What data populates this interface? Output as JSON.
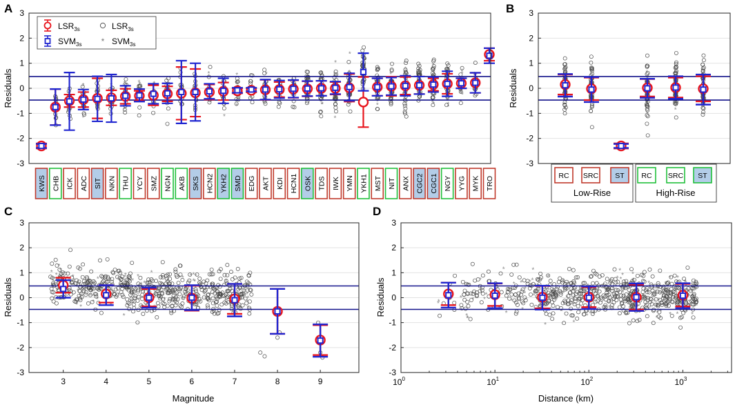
{
  "colors": {
    "lsr": "#e8141c",
    "svm": "#1f25d0",
    "band": "#11118a",
    "scatter": "#4a4a4a",
    "tag_red": "#c0392b",
    "tag_green": "#1fbf3a",
    "tag_fill_blue": "#b3cde8"
  },
  "panels": {
    "A": {
      "label": "A"
    },
    "B": {
      "label": "B"
    },
    "C": {
      "label": "C"
    },
    "D": {
      "label": "D"
    }
  },
  "legend": {
    "items": [
      {
        "symbol": "circle-errorbar",
        "name": "LSR",
        "sub": "3s"
      },
      {
        "symbol": "open-circle",
        "name": "LSR",
        "sub": "3s"
      },
      {
        "symbol": "square-errorbar",
        "name": "SVM",
        "sub": "3s"
      },
      {
        "symbol": "asterisk",
        "name": "SVM",
        "sub": "3s"
      }
    ]
  },
  "group_labels": {
    "low": "Low-Rise",
    "high": "High-Rise"
  },
  "chart_data": [
    {
      "panel": "A",
      "type": "scatter",
      "ylabel": "Residuals",
      "ylim": [
        -3,
        3
      ],
      "yticks": [
        -3,
        -2,
        -1,
        0,
        1,
        2,
        3
      ],
      "threshold_lines": [
        0.47,
        -0.47
      ],
      "categories": [
        "KWS",
        "CHB",
        "ICK",
        "ADC",
        "SIT",
        "NKN",
        "THU",
        "YCY",
        "SMZ",
        "NGN",
        "AKB",
        "SKS",
        "HCN2",
        "YKH2",
        "SMD",
        "EDG",
        "AKT",
        "KDI",
        "HCN1",
        "OSK",
        "TDS",
        "IWK",
        "YMN",
        "YKH1",
        "MST",
        "NIT",
        "ANX",
        "CGC2",
        "CGC1",
        "NGY",
        "YYG",
        "MYK",
        "TRO"
      ],
      "tag_colors": [
        "red",
        "green",
        "red",
        "red",
        "red",
        "red",
        "green",
        "red",
        "red",
        "green",
        "green",
        "red",
        "red",
        "green",
        "green",
        "red",
        "red",
        "red",
        "red",
        "green",
        "red",
        "red",
        "red",
        "green",
        "red",
        "green",
        "red",
        "red",
        "red",
        "green",
        "red",
        "red",
        "red"
      ],
      "tag_fill": [
        true,
        false,
        false,
        false,
        true,
        false,
        false,
        false,
        false,
        false,
        false,
        true,
        false,
        true,
        true,
        false,
        false,
        false,
        false,
        true,
        false,
        false,
        false,
        false,
        false,
        false,
        false,
        true,
        true,
        false,
        false,
        false,
        false
      ],
      "series": [
        {
          "name": "LSR3s",
          "mean": [
            -2.3,
            -0.75,
            -0.5,
            -0.45,
            -0.4,
            -0.38,
            -0.32,
            -0.3,
            -0.28,
            -0.22,
            -0.2,
            -0.18,
            -0.15,
            -0.12,
            -0.1,
            -0.08,
            -0.06,
            -0.05,
            -0.03,
            -0.02,
            0.0,
            0.0,
            0.02,
            -0.55,
            0.05,
            0.08,
            0.1,
            0.12,
            0.15,
            0.18,
            0.2,
            0.22,
            1.35
          ],
          "std": [
            0.1,
            0.72,
            0.25,
            0.3,
            0.8,
            0.3,
            0.3,
            0.2,
            0.4,
            0.3,
            1.05,
            0.95,
            0.3,
            0.35,
            0.1,
            0.08,
            0.4,
            0.3,
            0.35,
            0.3,
            0.3,
            0.25,
            0.55,
            1.0,
            0.35,
            0.38,
            0.35,
            0.35,
            0.25,
            0.4,
            0.2,
            0.4,
            0.25
          ]
        },
        {
          "name": "SVM3s",
          "mean": [
            -2.3,
            -0.75,
            -0.52,
            -0.45,
            -0.42,
            -0.4,
            -0.3,
            -0.28,
            -0.22,
            -0.2,
            -0.15,
            -0.15,
            -0.12,
            -0.1,
            -0.08,
            -0.05,
            -0.05,
            -0.04,
            -0.02,
            -0.01,
            0.0,
            0.02,
            0.05,
            0.65,
            0.05,
            0.08,
            0.1,
            0.12,
            0.15,
            0.18,
            0.2,
            0.22,
            1.3
          ],
          "std": [
            0.08,
            0.72,
            1.15,
            0.4,
            0.9,
            0.95,
            0.4,
            0.25,
            0.4,
            0.4,
            1.25,
            1.15,
            0.3,
            0.5,
            0.1,
            0.07,
            0.4,
            0.35,
            0.35,
            0.3,
            0.3,
            0.25,
            0.55,
            0.75,
            0.35,
            0.35,
            0.4,
            0.35,
            0.3,
            0.5,
            0.2,
            0.4,
            0.3
          ]
        }
      ]
    },
    {
      "panel": "B",
      "type": "scatter",
      "ylabel": "Residuals",
      "ylim": [
        -3,
        3
      ],
      "yticks": [
        -3,
        -2,
        -1,
        0,
        1,
        2,
        3
      ],
      "threshold_lines": [
        0.47,
        -0.47
      ],
      "categories": [
        "RC",
        "SRC",
        "ST",
        "RC",
        "SRC",
        "ST"
      ],
      "tag_colors": [
        "red",
        "red",
        "red",
        "green",
        "green",
        "green"
      ],
      "tag_fill": [
        false,
        false,
        true,
        false,
        false,
        true
      ],
      "series": [
        {
          "name": "LSR3s",
          "mean": [
            0.15,
            -0.02,
            -2.3,
            0.02,
            0.03,
            -0.02
          ],
          "std": [
            0.4,
            0.45,
            0.1,
            0.35,
            0.4,
            0.5
          ]
        },
        {
          "name": "SVM3s",
          "mean": [
            0.12,
            -0.05,
            -2.3,
            0.0,
            0.03,
            -0.05
          ],
          "std": [
            0.45,
            0.5,
            0.08,
            0.38,
            0.45,
            0.6
          ]
        }
      ]
    },
    {
      "panel": "C",
      "type": "scatter",
      "xlabel": "Magnitude",
      "ylabel": "Residuals",
      "xlim": [
        2.2,
        9.9
      ],
      "ylim": [
        -3,
        3
      ],
      "xticks": [
        3,
        4,
        5,
        6,
        7,
        8,
        9
      ],
      "yticks": [
        -3,
        -2,
        -1,
        0,
        1,
        2,
        3
      ],
      "threshold_lines": [
        0.47,
        -0.47
      ],
      "x": [
        3,
        4,
        5,
        6,
        7,
        8,
        9
      ],
      "series": [
        {
          "name": "LSR3s",
          "mean": [
            0.5,
            0.15,
            0.0,
            -0.02,
            -0.05,
            -0.55,
            -1.7
          ],
          "std": [
            0.3,
            0.35,
            0.35,
            0.5,
            0.6,
            0.9,
            0.6
          ]
        },
        {
          "name": "SVM3s",
          "mean": [
            0.35,
            0.1,
            0.0,
            0.0,
            -0.1,
            -0.55,
            -1.72
          ],
          "std": [
            0.35,
            0.4,
            0.4,
            0.5,
            0.65,
            0.9,
            0.65
          ]
        }
      ]
    },
    {
      "panel": "D",
      "type": "scatter",
      "xlabel": "Distance (km)",
      "ylabel": "Residuals",
      "xscale": "log",
      "xlim": [
        1,
        3300
      ],
      "ylim": [
        -3,
        3
      ],
      "xticks": [
        1,
        10,
        100,
        1000
      ],
      "xtick_labels": [
        {
          "base": "10",
          "exp": "0"
        },
        {
          "base": "10",
          "exp": "1"
        },
        {
          "base": "10",
          "exp": "2"
        },
        {
          "base": "10",
          "exp": "3"
        }
      ],
      "yticks": [
        -3,
        -2,
        -1,
        0,
        1,
        2,
        3
      ],
      "threshold_lines": [
        0.47,
        -0.47
      ],
      "x": [
        3.2,
        10,
        32,
        100,
        320,
        1000
      ],
      "series": [
        {
          "name": "LSR3s",
          "mean": [
            0.15,
            0.12,
            0.02,
            0.02,
            0.02,
            0.1
          ],
          "std": [
            0.45,
            0.45,
            0.45,
            0.4,
            0.5,
            0.45
          ]
        },
        {
          "name": "SVM3s",
          "mean": [
            0.1,
            0.08,
            0.0,
            0.0,
            0.02,
            0.08
          ],
          "std": [
            0.5,
            0.5,
            0.48,
            0.45,
            0.55,
            0.5
          ]
        }
      ]
    }
  ]
}
